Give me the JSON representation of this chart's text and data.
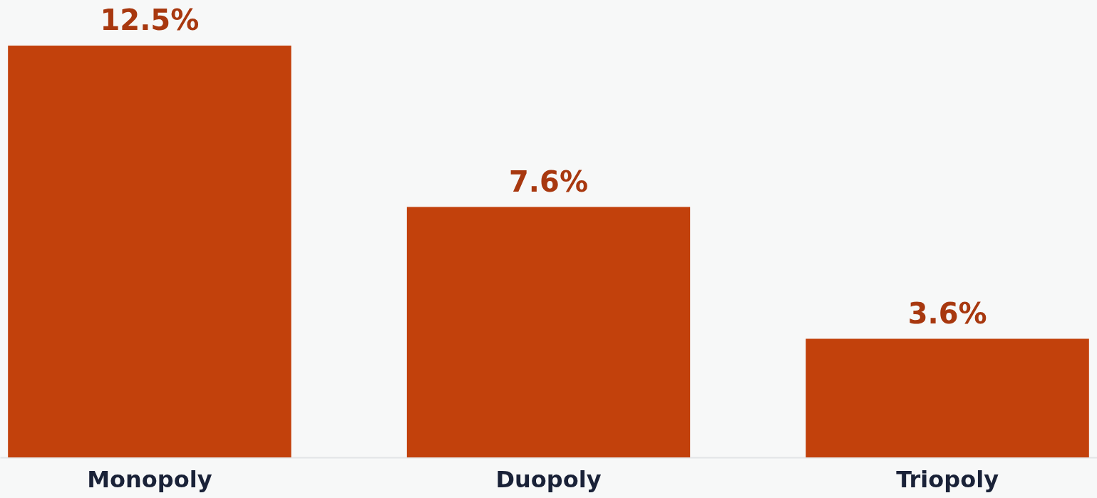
{
  "chart_data": {
    "type": "bar",
    "categories": [
      "Monopoly",
      "Duopoly",
      "Triopoly"
    ],
    "values": [
      12.5,
      7.6,
      3.6
    ],
    "color": "#c2410c",
    "value_labels": [
      "12.5%",
      "7.6%",
      "3.6%"
    ]
  }
}
